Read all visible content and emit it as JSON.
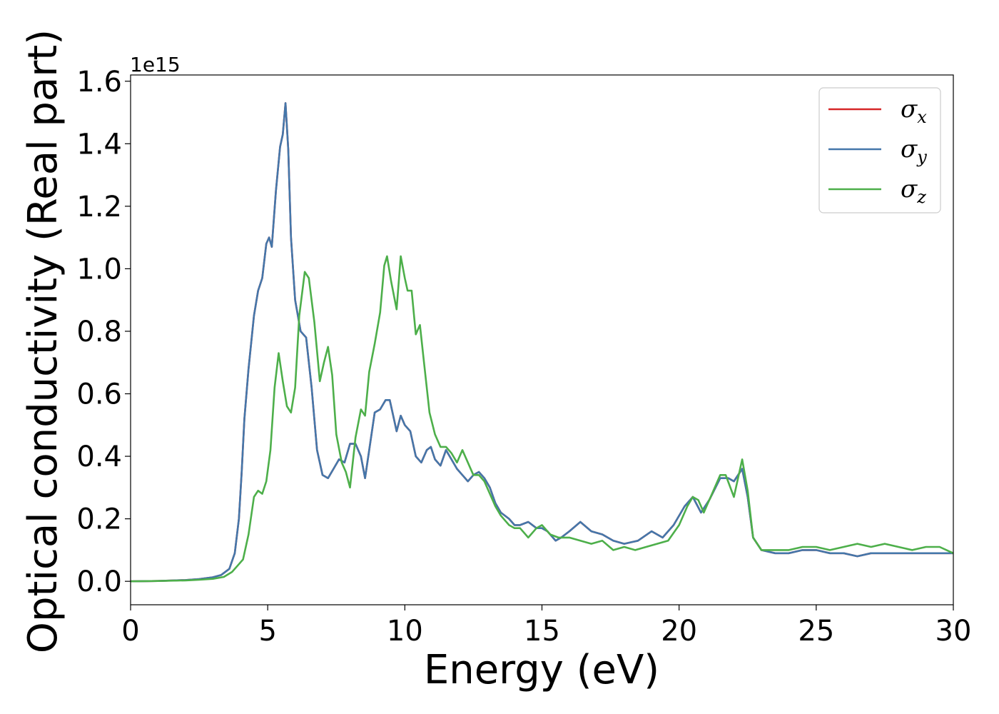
{
  "chart_data": {
    "type": "line",
    "title": "",
    "xlabel": "Energy (eV)",
    "ylabel": "Optical conductivity (Real part)",
    "y_offset_label": "1e15",
    "y_scale": 1000000000000000.0,
    "xlim": [
      0,
      30
    ],
    "ylim": [
      -0.075,
      1.62
    ],
    "x_ticks": [
      0,
      5,
      10,
      15,
      20,
      25,
      30
    ],
    "x_tick_labels": [
      "0",
      "5",
      "10",
      "15",
      "20",
      "25",
      "30"
    ],
    "y_ticks": [
      0.0,
      0.2,
      0.4,
      0.6,
      0.8,
      1.0,
      1.2,
      1.4,
      1.6
    ],
    "y_tick_labels": [
      "0.0",
      "0.2",
      "0.4",
      "0.6",
      "0.8",
      "1.0",
      "1.2",
      "1.4",
      "1.6"
    ],
    "grid": false,
    "legend_position": "top-right",
    "series": [
      {
        "name": "σ",
        "subscript": "x",
        "color": "#d62728",
        "points": [
          [
            0,
            0
          ],
          [
            1,
            0.001
          ],
          [
            2,
            0.004
          ],
          [
            2.5,
            0.007
          ],
          [
            3,
            0.013
          ],
          [
            3.3,
            0.02
          ],
          [
            3.6,
            0.04
          ],
          [
            3.8,
            0.09
          ],
          [
            3.95,
            0.2
          ],
          [
            4.05,
            0.35
          ],
          [
            4.15,
            0.52
          ],
          [
            4.3,
            0.68
          ],
          [
            4.5,
            0.85
          ],
          [
            4.65,
            0.93
          ],
          [
            4.8,
            0.97
          ],
          [
            4.95,
            1.08
          ],
          [
            5.05,
            1.1
          ],
          [
            5.15,
            1.07
          ],
          [
            5.3,
            1.25
          ],
          [
            5.45,
            1.39
          ],
          [
            5.55,
            1.43
          ],
          [
            5.65,
            1.53
          ],
          [
            5.75,
            1.38
          ],
          [
            5.85,
            1.1
          ],
          [
            6.0,
            0.9
          ],
          [
            6.2,
            0.8
          ],
          [
            6.4,
            0.78
          ],
          [
            6.6,
            0.62
          ],
          [
            6.8,
            0.42
          ],
          [
            7.0,
            0.34
          ],
          [
            7.2,
            0.33
          ],
          [
            7.4,
            0.36
          ],
          [
            7.6,
            0.39
          ],
          [
            7.8,
            0.38
          ],
          [
            8.0,
            0.44
          ],
          [
            8.2,
            0.44
          ],
          [
            8.4,
            0.4
          ],
          [
            8.55,
            0.33
          ],
          [
            8.7,
            0.42
          ],
          [
            8.9,
            0.54
          ],
          [
            9.1,
            0.55
          ],
          [
            9.3,
            0.58
          ],
          [
            9.45,
            0.58
          ],
          [
            9.6,
            0.52
          ],
          [
            9.7,
            0.48
          ],
          [
            9.85,
            0.53
          ],
          [
            10.0,
            0.5
          ],
          [
            10.2,
            0.48
          ],
          [
            10.4,
            0.4
          ],
          [
            10.6,
            0.38
          ],
          [
            10.8,
            0.42
          ],
          [
            10.95,
            0.43
          ],
          [
            11.1,
            0.39
          ],
          [
            11.3,
            0.37
          ],
          [
            11.5,
            0.42
          ],
          [
            11.7,
            0.39
          ],
          [
            11.9,
            0.36
          ],
          [
            12.1,
            0.34
          ],
          [
            12.3,
            0.32
          ],
          [
            12.5,
            0.34
          ],
          [
            12.7,
            0.35
          ],
          [
            12.9,
            0.33
          ],
          [
            13.1,
            0.3
          ],
          [
            13.3,
            0.25
          ],
          [
            13.5,
            0.22
          ],
          [
            13.8,
            0.2
          ],
          [
            14.0,
            0.18
          ],
          [
            14.2,
            0.18
          ],
          [
            14.5,
            0.19
          ],
          [
            14.8,
            0.17
          ],
          [
            15.0,
            0.17
          ],
          [
            15.2,
            0.16
          ],
          [
            15.5,
            0.13
          ],
          [
            15.7,
            0.14
          ],
          [
            16.0,
            0.16
          ],
          [
            16.4,
            0.19
          ],
          [
            16.8,
            0.16
          ],
          [
            17.2,
            0.15
          ],
          [
            17.6,
            0.13
          ],
          [
            18.0,
            0.12
          ],
          [
            18.5,
            0.13
          ],
          [
            19.0,
            0.16
          ],
          [
            19.4,
            0.14
          ],
          [
            19.8,
            0.18
          ],
          [
            20.2,
            0.24
          ],
          [
            20.5,
            0.27
          ],
          [
            20.8,
            0.22
          ],
          [
            21.1,
            0.26
          ],
          [
            21.5,
            0.33
          ],
          [
            21.8,
            0.33
          ],
          [
            22.0,
            0.32
          ],
          [
            22.3,
            0.36
          ],
          [
            22.5,
            0.27
          ],
          [
            22.7,
            0.14
          ],
          [
            23.0,
            0.1
          ],
          [
            23.5,
            0.09
          ],
          [
            24.0,
            0.09
          ],
          [
            24.5,
            0.1
          ],
          [
            25.0,
            0.1
          ],
          [
            25.5,
            0.09
          ],
          [
            26.0,
            0.09
          ],
          [
            26.5,
            0.08
          ],
          [
            27.0,
            0.09
          ],
          [
            27.5,
            0.09
          ],
          [
            28.0,
            0.09
          ],
          [
            28.5,
            0.09
          ],
          [
            29.0,
            0.09
          ],
          [
            29.5,
            0.09
          ],
          [
            30.0,
            0.09
          ]
        ]
      },
      {
        "name": "σ",
        "subscript": "y",
        "color": "#4477aa",
        "same_as_series": 0
      },
      {
        "name": "σ",
        "subscript": "z",
        "color": "#4daf4a",
        "points": [
          [
            0,
            0
          ],
          [
            1,
            0.001
          ],
          [
            2,
            0.003
          ],
          [
            2.5,
            0.005
          ],
          [
            3,
            0.008
          ],
          [
            3.4,
            0.014
          ],
          [
            3.7,
            0.03
          ],
          [
            3.9,
            0.05
          ],
          [
            4.1,
            0.07
          ],
          [
            4.3,
            0.15
          ],
          [
            4.5,
            0.27
          ],
          [
            4.65,
            0.29
          ],
          [
            4.8,
            0.28
          ],
          [
            4.95,
            0.32
          ],
          [
            5.1,
            0.42
          ],
          [
            5.25,
            0.62
          ],
          [
            5.4,
            0.73
          ],
          [
            5.55,
            0.64
          ],
          [
            5.7,
            0.56
          ],
          [
            5.85,
            0.54
          ],
          [
            6.0,
            0.62
          ],
          [
            6.15,
            0.85
          ],
          [
            6.35,
            0.99
          ],
          [
            6.5,
            0.97
          ],
          [
            6.7,
            0.83
          ],
          [
            6.9,
            0.64
          ],
          [
            7.05,
            0.7
          ],
          [
            7.2,
            0.75
          ],
          [
            7.35,
            0.66
          ],
          [
            7.5,
            0.47
          ],
          [
            7.7,
            0.38
          ],
          [
            7.85,
            0.35
          ],
          [
            8.0,
            0.3
          ],
          [
            8.2,
            0.46
          ],
          [
            8.4,
            0.55
          ],
          [
            8.55,
            0.53
          ],
          [
            8.7,
            0.67
          ],
          [
            8.9,
            0.76
          ],
          [
            9.1,
            0.86
          ],
          [
            9.25,
            1.01
          ],
          [
            9.35,
            1.04
          ],
          [
            9.5,
            0.96
          ],
          [
            9.7,
            0.87
          ],
          [
            9.85,
            1.04
          ],
          [
            10.0,
            0.97
          ],
          [
            10.1,
            0.93
          ],
          [
            10.25,
            0.93
          ],
          [
            10.4,
            0.79
          ],
          [
            10.55,
            0.82
          ],
          [
            10.7,
            0.7
          ],
          [
            10.9,
            0.54
          ],
          [
            11.1,
            0.47
          ],
          [
            11.3,
            0.43
          ],
          [
            11.5,
            0.43
          ],
          [
            11.7,
            0.41
          ],
          [
            11.9,
            0.38
          ],
          [
            12.1,
            0.42
          ],
          [
            12.3,
            0.38
          ],
          [
            12.5,
            0.34
          ],
          [
            12.7,
            0.34
          ],
          [
            12.9,
            0.32
          ],
          [
            13.1,
            0.28
          ],
          [
            13.3,
            0.24
          ],
          [
            13.5,
            0.21
          ],
          [
            13.8,
            0.18
          ],
          [
            14.0,
            0.17
          ],
          [
            14.2,
            0.17
          ],
          [
            14.5,
            0.14
          ],
          [
            14.8,
            0.17
          ],
          [
            15.0,
            0.18
          ],
          [
            15.3,
            0.15
          ],
          [
            15.6,
            0.14
          ],
          [
            16.0,
            0.14
          ],
          [
            16.4,
            0.13
          ],
          [
            16.8,
            0.12
          ],
          [
            17.2,
            0.13
          ],
          [
            17.6,
            0.1
          ],
          [
            18.0,
            0.11
          ],
          [
            18.4,
            0.1
          ],
          [
            18.8,
            0.11
          ],
          [
            19.2,
            0.12
          ],
          [
            19.6,
            0.13
          ],
          [
            20.0,
            0.18
          ],
          [
            20.3,
            0.24
          ],
          [
            20.5,
            0.27
          ],
          [
            20.7,
            0.26
          ],
          [
            20.9,
            0.22
          ],
          [
            21.2,
            0.28
          ],
          [
            21.5,
            0.34
          ],
          [
            21.7,
            0.34
          ],
          [
            22.0,
            0.27
          ],
          [
            22.3,
            0.39
          ],
          [
            22.5,
            0.29
          ],
          [
            22.7,
            0.14
          ],
          [
            23.0,
            0.1
          ],
          [
            23.5,
            0.1
          ],
          [
            24.0,
            0.1
          ],
          [
            24.5,
            0.11
          ],
          [
            25.0,
            0.11
          ],
          [
            25.5,
            0.1
          ],
          [
            26.0,
            0.11
          ],
          [
            26.5,
            0.12
          ],
          [
            27.0,
            0.11
          ],
          [
            27.5,
            0.12
          ],
          [
            28.0,
            0.11
          ],
          [
            28.5,
            0.1
          ],
          [
            29.0,
            0.11
          ],
          [
            29.5,
            0.11
          ],
          [
            30.0,
            0.09
          ]
        ]
      }
    ]
  }
}
